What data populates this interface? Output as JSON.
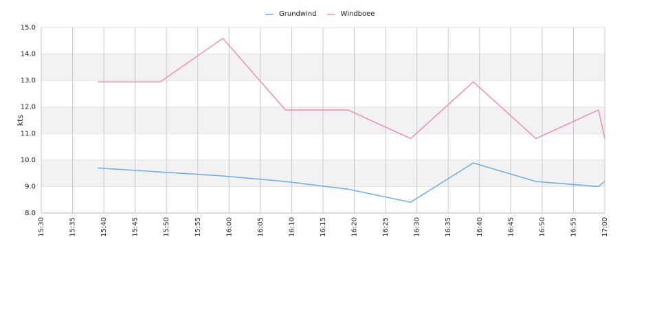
{
  "chart_data": {
    "type": "line",
    "ylabel": "kts",
    "x": [
      "15:39",
      "15:49",
      "15:59",
      "16:09",
      "16:19",
      "16:29",
      "16:39",
      "16:49",
      "16:59",
      "17:00"
    ],
    "series": [
      {
        "name": "Grundwind",
        "color": "#6aaee8",
        "values": [
          9.7,
          9.55,
          9.4,
          9.19,
          8.9,
          8.41,
          9.89,
          9.19,
          9.0,
          9.2
        ]
      },
      {
        "name": "Windboee",
        "color": "#f08cb8",
        "values": [
          12.95,
          12.95,
          14.59,
          11.89,
          11.89,
          10.81,
          12.95,
          10.81,
          11.89,
          10.81
        ]
      }
    ],
    "xlim": [
      "15:30",
      "17:00"
    ],
    "xticks": [
      "15:30",
      "15:35",
      "15:40",
      "15:45",
      "15:50",
      "15:55",
      "16:00",
      "16:05",
      "16:10",
      "16:15",
      "16:20",
      "16:25",
      "16:30",
      "16:35",
      "16:40",
      "16:45",
      "16:50",
      "16:55",
      "17:00"
    ],
    "ylim": [
      8,
      15
    ],
    "yticks": [
      {
        "value": 8,
        "label": "8.0"
      },
      {
        "value": 9,
        "label": "9.0"
      },
      {
        "value": 10,
        "label": "10.0"
      },
      {
        "value": 11,
        "label": "11.0"
      },
      {
        "value": 12,
        "label": "12.0"
      },
      {
        "value": 13,
        "label": "13.0"
      },
      {
        "value": 14,
        "label": "14.0"
      },
      {
        "value": 15,
        "label": "15.0"
      }
    ],
    "grid": true,
    "legend": "top"
  }
}
